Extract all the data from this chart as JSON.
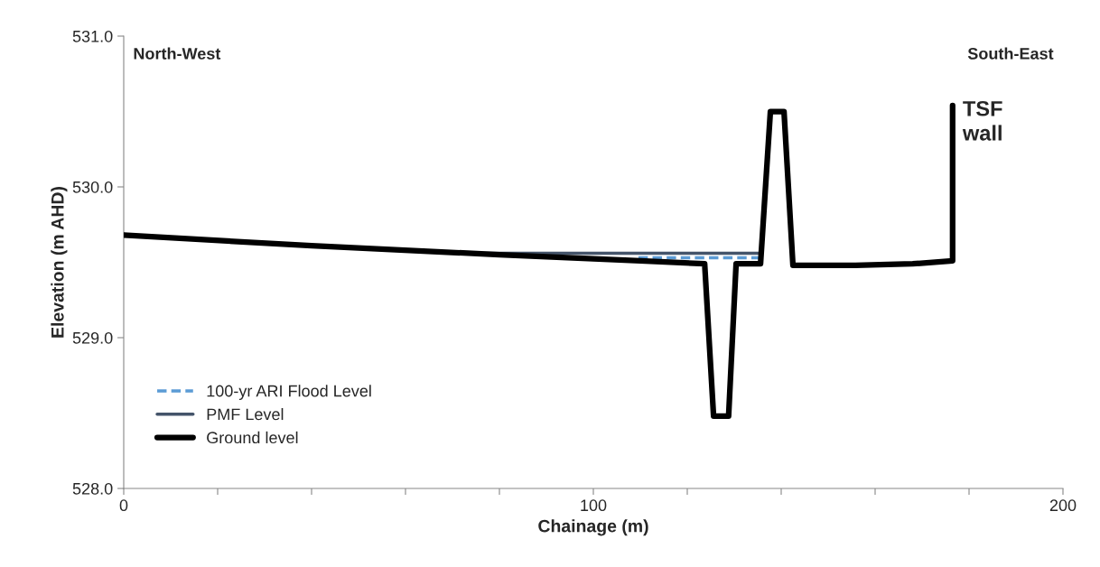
{
  "chart_data": {
    "type": "line",
    "xlabel": "Chainage (m)",
    "ylabel": "Elevation (m AHD)",
    "xlim": [
      0,
      200
    ],
    "ylim": [
      528,
      531
    ],
    "xticks": [
      0,
      {
        "value": 20,
        "label": null
      },
      {
        "value": 40,
        "label": null
      },
      {
        "value": 60,
        "label": null
      },
      {
        "value": 80,
        "label": null
      },
      100,
      {
        "value": 120,
        "label": null
      },
      {
        "value": 140,
        "label": null
      },
      {
        "value": 160,
        "label": null
      },
      {
        "value": 180,
        "label": null
      },
      200
    ],
    "yticks": [
      {
        "value": 528,
        "label": "528.0"
      },
      {
        "value": 529,
        "label": "529.0"
      },
      {
        "value": 530,
        "label": "530.0"
      },
      {
        "value": 531,
        "label": "531.0"
      }
    ],
    "grid": false,
    "legend": "bottom left",
    "series": [
      {
        "name": "100-yr ARI Flood Level",
        "color": "#5b9bd5",
        "line_style": "dashed",
        "x": [
          109.6,
          135.6
        ],
        "values": [
          529.53,
          529.53
        ]
      },
      {
        "name": "PMF Level",
        "color": "#44546a",
        "line_style": "solid",
        "x": [
          75,
          135.6
        ],
        "values": [
          529.56,
          529.56
        ]
      },
      {
        "name": "Ground level",
        "color": "#000000",
        "line_style": "solid",
        "x": [
          0,
          40,
          80,
          110,
          123.7,
          125.6,
          128.8,
          130.4,
          135.6,
          137.7,
          140.6,
          142.5,
          155.8,
          168,
          176.5,
          176.5
        ],
        "values": [
          529.68,
          529.61,
          529.55,
          529.51,
          529.49,
          528.48,
          528.48,
          529.49,
          529.49,
          530.5,
          530.5,
          529.48,
          529.48,
          529.49,
          529.51,
          530.54
        ]
      }
    ],
    "annotations": [
      "North-West",
      "South-East",
      {
        "text": "TSF wall",
        "x": 176.5,
        "y": 530.54
      }
    ]
  }
}
